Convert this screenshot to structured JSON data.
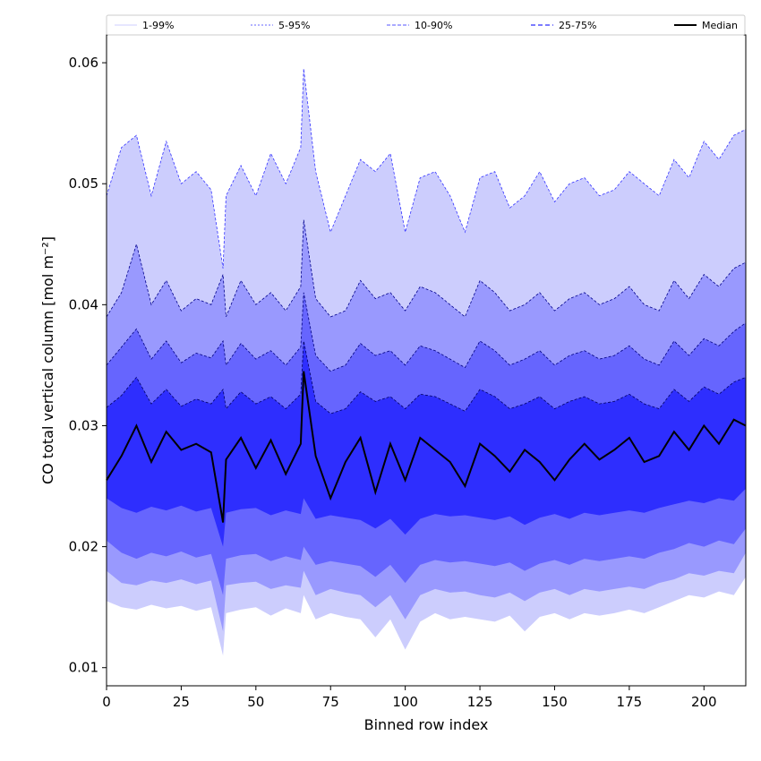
{
  "chart_data": {
    "type": "area",
    "xlabel": "Binned row index",
    "ylabel": "CO total vertical column [mol m⁻²]",
    "xlim": [
      0,
      214
    ],
    "ylim": [
      0.0085,
      0.0623
    ],
    "xticks": [
      0,
      25,
      50,
      75,
      100,
      125,
      150,
      175,
      200
    ],
    "xtick_labels": [
      "0",
      "25",
      "50",
      "75",
      "100",
      "125",
      "150",
      "175",
      "200"
    ],
    "yticks": [
      0.01,
      0.02,
      0.03,
      0.04,
      0.05,
      0.06
    ],
    "ytick_labels": [
      "0.01",
      "0.02",
      "0.03",
      "0.04",
      "0.05",
      "0.06"
    ],
    "grid": false,
    "legend_position": "top, spanning full width",
    "colors": {
      "band_1_99": "#cccdfd",
      "band_5_95": "#9999fe",
      "band_10_90": "#6665fe",
      "band_25_75": "#2e2efe",
      "median": "#000000"
    },
    "x": [
      0,
      5,
      10,
      15,
      20,
      25,
      30,
      35,
      39,
      40,
      45,
      50,
      55,
      60,
      65,
      66,
      70,
      75,
      80,
      85,
      90,
      95,
      100,
      105,
      110,
      115,
      120,
      125,
      130,
      135,
      140,
      145,
      150,
      155,
      160,
      165,
      170,
      175,
      180,
      185,
      190,
      195,
      200,
      205,
      210,
      214
    ],
    "series": [
      {
        "name": "1-99%",
        "lower": [
          0.0155,
          0.015,
          0.0148,
          0.0152,
          0.0149,
          0.0151,
          0.0147,
          0.015,
          0.011,
          0.0145,
          0.0148,
          0.015,
          0.0143,
          0.0149,
          0.0145,
          0.016,
          0.014,
          0.0145,
          0.0142,
          0.014,
          0.0125,
          0.014,
          0.0115,
          0.0138,
          0.0145,
          0.014,
          0.0142,
          0.014,
          0.0138,
          0.0143,
          0.013,
          0.0142,
          0.0145,
          0.014,
          0.0145,
          0.0143,
          0.0145,
          0.0148,
          0.0145,
          0.015,
          0.0155,
          0.016,
          0.0158,
          0.0163,
          0.016,
          0.0175
        ],
        "upper": [
          0.049,
          0.053,
          0.054,
          0.049,
          0.0535,
          0.05,
          0.051,
          0.0495,
          0.043,
          0.049,
          0.0515,
          0.049,
          0.0525,
          0.05,
          0.053,
          0.0595,
          0.051,
          0.046,
          0.049,
          0.052,
          0.051,
          0.0525,
          0.046,
          0.0505,
          0.051,
          0.049,
          0.046,
          0.0505,
          0.051,
          0.048,
          0.049,
          0.051,
          0.0485,
          0.05,
          0.0505,
          0.049,
          0.0495,
          0.051,
          0.05,
          0.049,
          0.052,
          0.0505,
          0.0535,
          0.052,
          0.054,
          0.0545
        ]
      },
      {
        "name": "5-95%",
        "lower": [
          0.018,
          0.017,
          0.0168,
          0.0172,
          0.017,
          0.0173,
          0.0169,
          0.0172,
          0.013,
          0.0168,
          0.017,
          0.0171,
          0.0165,
          0.0168,
          0.0166,
          0.018,
          0.016,
          0.0165,
          0.0162,
          0.016,
          0.015,
          0.016,
          0.014,
          0.016,
          0.0165,
          0.0162,
          0.0163,
          0.016,
          0.0158,
          0.0162,
          0.0155,
          0.0162,
          0.0165,
          0.016,
          0.0165,
          0.0163,
          0.0165,
          0.0167,
          0.0165,
          0.017,
          0.0173,
          0.0178,
          0.0176,
          0.018,
          0.0178,
          0.0195
        ],
        "upper": [
          0.039,
          0.041,
          0.045,
          0.04,
          0.042,
          0.0395,
          0.0405,
          0.04,
          0.0425,
          0.039,
          0.042,
          0.04,
          0.041,
          0.0395,
          0.0415,
          0.047,
          0.0405,
          0.039,
          0.0395,
          0.042,
          0.0405,
          0.041,
          0.0395,
          0.0415,
          0.041,
          0.04,
          0.039,
          0.042,
          0.041,
          0.0395,
          0.04,
          0.041,
          0.0395,
          0.0405,
          0.041,
          0.04,
          0.0405,
          0.0415,
          0.04,
          0.0395,
          0.042,
          0.0405,
          0.0425,
          0.0415,
          0.043,
          0.0435
        ]
      },
      {
        "name": "10-90%",
        "lower": [
          0.0205,
          0.0195,
          0.019,
          0.0195,
          0.0192,
          0.0196,
          0.0191,
          0.0194,
          0.016,
          0.019,
          0.0193,
          0.0194,
          0.0188,
          0.0192,
          0.0189,
          0.02,
          0.0185,
          0.0188,
          0.0186,
          0.0184,
          0.0175,
          0.0185,
          0.017,
          0.0185,
          0.0189,
          0.0187,
          0.0188,
          0.0186,
          0.0184,
          0.0187,
          0.018,
          0.0186,
          0.0189,
          0.0185,
          0.019,
          0.0188,
          0.019,
          0.0192,
          0.019,
          0.0195,
          0.0198,
          0.0203,
          0.02,
          0.0205,
          0.0202,
          0.0215
        ],
        "upper": [
          0.035,
          0.0365,
          0.038,
          0.0355,
          0.037,
          0.0352,
          0.036,
          0.0356,
          0.037,
          0.035,
          0.0368,
          0.0355,
          0.0362,
          0.035,
          0.0365,
          0.041,
          0.0358,
          0.0345,
          0.035,
          0.0368,
          0.0358,
          0.0362,
          0.035,
          0.0366,
          0.0362,
          0.0355,
          0.0348,
          0.037,
          0.0362,
          0.035,
          0.0355,
          0.0362,
          0.035,
          0.0358,
          0.0362,
          0.0355,
          0.0358,
          0.0366,
          0.0355,
          0.035,
          0.037,
          0.0358,
          0.0372,
          0.0366,
          0.0378,
          0.0385
        ]
      },
      {
        "name": "25-75%",
        "lower": [
          0.024,
          0.0232,
          0.0228,
          0.0233,
          0.023,
          0.0234,
          0.0229,
          0.0232,
          0.02,
          0.0228,
          0.0231,
          0.0232,
          0.0226,
          0.023,
          0.0227,
          0.024,
          0.0223,
          0.0226,
          0.0224,
          0.0222,
          0.0215,
          0.0223,
          0.021,
          0.0223,
          0.0227,
          0.0225,
          0.0226,
          0.0224,
          0.0222,
          0.0225,
          0.0218,
          0.0224,
          0.0227,
          0.0223,
          0.0228,
          0.0226,
          0.0228,
          0.023,
          0.0228,
          0.0232,
          0.0235,
          0.0238,
          0.0236,
          0.024,
          0.0238,
          0.0248
        ],
        "upper": [
          0.0315,
          0.0325,
          0.034,
          0.0318,
          0.033,
          0.0316,
          0.0322,
          0.0318,
          0.033,
          0.0314,
          0.0328,
          0.0318,
          0.0324,
          0.0314,
          0.0326,
          0.037,
          0.032,
          0.031,
          0.0314,
          0.0328,
          0.032,
          0.0324,
          0.0314,
          0.0326,
          0.0324,
          0.0318,
          0.0312,
          0.033,
          0.0324,
          0.0314,
          0.0318,
          0.0324,
          0.0314,
          0.032,
          0.0324,
          0.0318,
          0.032,
          0.0326,
          0.0318,
          0.0314,
          0.033,
          0.032,
          0.0332,
          0.0326,
          0.0336,
          0.034
        ]
      },
      {
        "name": "Median",
        "values": [
          0.0255,
          0.0275,
          0.03,
          0.027,
          0.0295,
          0.028,
          0.0285,
          0.0278,
          0.022,
          0.0272,
          0.029,
          0.0265,
          0.0288,
          0.026,
          0.0285,
          0.0345,
          0.0275,
          0.024,
          0.027,
          0.029,
          0.0245,
          0.0285,
          0.0255,
          0.029,
          0.028,
          0.027,
          0.025,
          0.0285,
          0.0275,
          0.0262,
          0.028,
          0.027,
          0.0255,
          0.0272,
          0.0285,
          0.0272,
          0.028,
          0.029,
          0.027,
          0.0275,
          0.0295,
          0.028,
          0.03,
          0.0285,
          0.0305,
          0.03
        ]
      }
    ]
  }
}
